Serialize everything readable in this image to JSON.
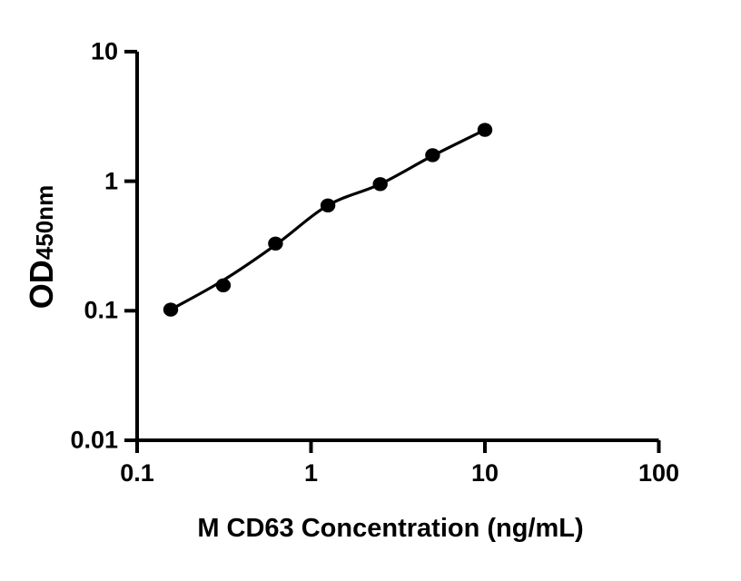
{
  "figure": {
    "background_color": "#ffffff",
    "foreground_color": "#000000"
  },
  "chart_data": {
    "type": "scatter",
    "title": "",
    "x_scale": "log",
    "y_scale": "log",
    "xlim": [
      0.1,
      100
    ],
    "ylim": [
      0.01,
      10
    ],
    "xlabel": "M CD63 Concentration (ng/mL)",
    "ylabel_main": "OD",
    "ylabel_sub": "450nm",
    "x_ticks": [
      0.1,
      1,
      10,
      100
    ],
    "x_tick_labels": [
      "0.1",
      "1",
      "10",
      "100"
    ],
    "y_ticks": [
      0.01,
      0.1,
      1,
      10
    ],
    "y_tick_labels": [
      "0.01",
      "0.1",
      "1",
      "10"
    ],
    "grid": false,
    "legend": null,
    "series": [
      {
        "name": "standard-curve-points",
        "marker": "filled-circle",
        "color": "#000000",
        "x": [
          0.156,
          0.313,
          0.625,
          1.25,
          2.5,
          5,
          10
        ],
        "y": [
          0.102,
          0.157,
          0.33,
          0.65,
          0.95,
          1.59,
          2.49
        ]
      }
    ],
    "fit_line": {
      "name": "fitted-standard-curve",
      "color": "#000000",
      "x": [
        0.156,
        0.313,
        0.625,
        1.25,
        2.5,
        5,
        10
      ],
      "y": [
        0.102,
        0.172,
        0.322,
        0.65,
        0.95,
        1.57,
        2.49
      ]
    }
  }
}
